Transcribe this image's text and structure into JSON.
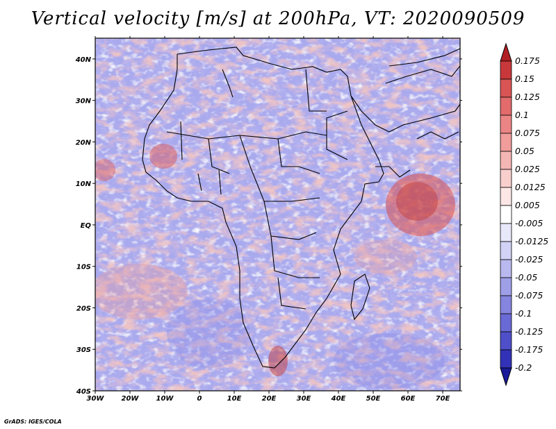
{
  "title": "Vertical velocity [m/s] at 200hPa, VT: 2020090509",
  "credit": "GrADS: IGES/COLA",
  "map": {
    "lon_ticks": [
      "30W",
      "20W",
      "10W",
      "0",
      "10E",
      "20E",
      "30E",
      "40E",
      "50E",
      "60E",
      "70E"
    ],
    "lat_ticks": [
      "40N",
      "30N",
      "20N",
      "10N",
      "EQ",
      "10S",
      "20S",
      "30S",
      "40S"
    ],
    "lon_range": [
      -30,
      75
    ],
    "lat_range": [
      -40,
      45
    ],
    "field": "vertical velocity",
    "units": "m/s",
    "level": "200hPa",
    "valid_time": "2020090509"
  },
  "colorbar": {
    "labels": [
      "0.175",
      "0.15",
      "0.125",
      "0.1",
      "0.075",
      "0.05",
      "0.025",
      "0.0125",
      "0.005",
      "-0.005",
      "-0.0125",
      "-0.025",
      "-0.05",
      "-0.075",
      "-0.1",
      "-0.125",
      "-0.175",
      "-0.2"
    ],
    "colors": [
      "#b01f24",
      "#c8383a",
      "#d95454",
      "#e36b6b",
      "#eb8585",
      "#f09d9b",
      "#f4b6b4",
      "#f8cfcd",
      "#fce7e6",
      "#ffffff",
      "#e8e8fb",
      "#d2d2f6",
      "#b9b9ef",
      "#9f9fe8",
      "#8585df",
      "#6a6ad6",
      "#4f4fca",
      "#3232b8",
      "#1a1a9a"
    ]
  },
  "colors": {
    "positive": "#d9504f",
    "negative": "#6e6ee0",
    "coastline": "#000000"
  }
}
